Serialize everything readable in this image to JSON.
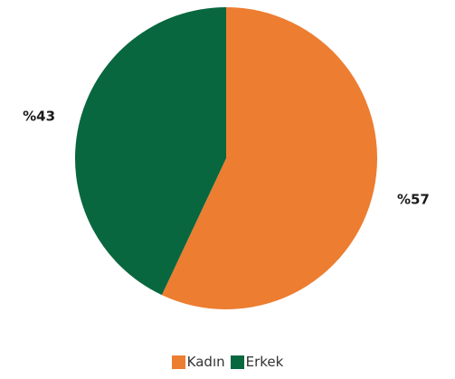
{
  "chart_data": {
    "type": "pie",
    "categories": [
      "Kadın",
      "Erkek"
    ],
    "values": [
      57,
      43
    ],
    "value_labels": [
      "%57",
      "%43"
    ],
    "colors": [
      "#ed7d31",
      "#08673e"
    ],
    "start": "top",
    "direction": "clockwise",
    "legend_position": "bottom"
  }
}
